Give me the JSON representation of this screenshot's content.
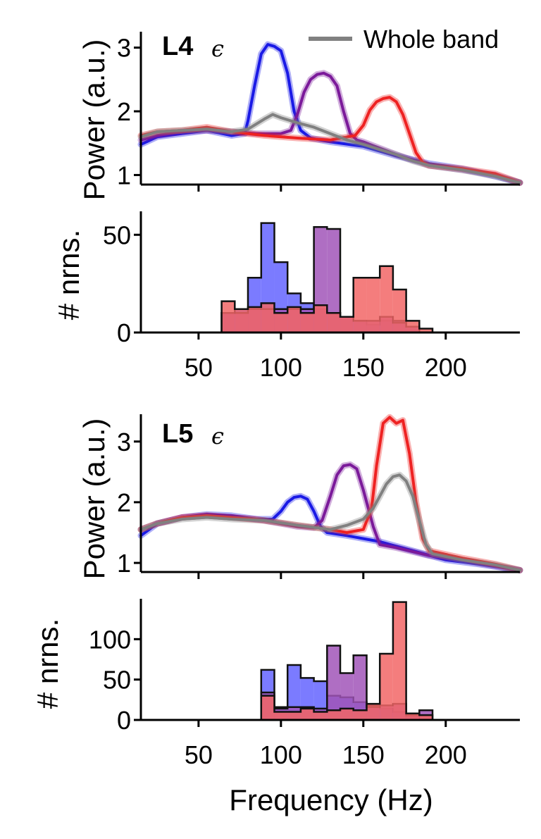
{
  "chart_data": [
    {
      "type": "line",
      "panel_tag": "L4",
      "tag_symbol": "ϵ",
      "ylabel": "Power (a.u.)",
      "xlim": [
        15,
        245
      ],
      "ylim": [
        0.85,
        3.25
      ],
      "yticks": [
        1,
        2,
        3
      ],
      "legend": {
        "label": "Whole band",
        "color": "#808080",
        "position": "top-right"
      },
      "series": [
        {
          "name": "blue",
          "color": "#1a1ae6",
          "x": [
            15,
            25,
            40,
            55,
            70,
            78,
            80,
            84,
            88,
            92,
            96,
            100,
            104,
            108,
            112,
            118,
            130,
            150,
            170,
            190,
            210,
            230,
            245
          ],
          "y": [
            1.48,
            1.6,
            1.65,
            1.7,
            1.62,
            1.65,
            1.85,
            2.4,
            2.9,
            3.05,
            3.02,
            2.95,
            2.6,
            2.0,
            1.7,
            1.58,
            1.52,
            1.45,
            1.3,
            1.18,
            1.1,
            0.98,
            0.88
          ]
        },
        {
          "name": "purple",
          "color": "#7b1a9a",
          "x": [
            15,
            25,
            40,
            55,
            70,
            85,
            100,
            106,
            110,
            114,
            118,
            122,
            126,
            130,
            134,
            138,
            142,
            146,
            150,
            170,
            190,
            210,
            230,
            245
          ],
          "y": [
            1.55,
            1.62,
            1.68,
            1.7,
            1.68,
            1.65,
            1.65,
            1.7,
            1.95,
            2.3,
            2.5,
            2.58,
            2.6,
            2.55,
            2.4,
            2.0,
            1.65,
            1.55,
            1.52,
            1.32,
            1.15,
            1.08,
            1.0,
            0.88
          ]
        },
        {
          "name": "red",
          "color": "#ee2222",
          "x": [
            15,
            25,
            40,
            55,
            70,
            90,
            110,
            130,
            145,
            150,
            154,
            158,
            162,
            166,
            170,
            174,
            178,
            182,
            186,
            190,
            210,
            230,
            245
          ],
          "y": [
            1.62,
            1.68,
            1.7,
            1.75,
            1.68,
            1.62,
            1.58,
            1.55,
            1.62,
            1.78,
            2.02,
            2.15,
            2.2,
            2.22,
            2.15,
            1.95,
            1.65,
            1.35,
            1.2,
            1.15,
            1.1,
            1.02,
            0.88
          ]
        },
        {
          "name": "Whole band",
          "color": "#808080",
          "x": [
            15,
            25,
            40,
            55,
            70,
            80,
            90,
            95,
            100,
            110,
            120,
            130,
            140,
            150,
            160,
            170,
            180,
            190,
            210,
            230,
            245
          ],
          "y": [
            1.6,
            1.68,
            1.7,
            1.72,
            1.68,
            1.72,
            1.88,
            1.95,
            1.9,
            1.82,
            1.75,
            1.65,
            1.55,
            1.48,
            1.4,
            1.32,
            1.22,
            1.15,
            1.08,
            0.98,
            0.88
          ]
        }
      ]
    },
    {
      "type": "histogram",
      "ylabel": "# nrns.",
      "xlim": [
        15,
        245
      ],
      "ylim": [
        0,
        62
      ],
      "yticks": [
        0,
        50
      ],
      "xticks": [
        50,
        100,
        150,
        200
      ],
      "bin_edges": [
        64,
        72,
        80,
        88,
        96,
        104,
        112,
        120,
        128,
        136,
        144,
        152,
        160,
        168,
        176,
        184,
        192
      ],
      "series": [
        {
          "name": "blue",
          "color": "#6464ff",
          "values": [
            10,
            12,
            28,
            56,
            36,
            20,
            15,
            12,
            10,
            8,
            6,
            4,
            6,
            6,
            3,
            0
          ]
        },
        {
          "name": "purple",
          "color": "#a155b8",
          "values": [
            10,
            10,
            12,
            12,
            12,
            12,
            12,
            54,
            53,
            8,
            6,
            6,
            8,
            5,
            3,
            0
          ]
        },
        {
          "name": "red",
          "color": "#f26666",
          "values": [
            16,
            12,
            13,
            15,
            10,
            13,
            10,
            14,
            10,
            8,
            28,
            28,
            34,
            22,
            6,
            2
          ]
        }
      ]
    },
    {
      "type": "line",
      "panel_tag": "L5",
      "tag_symbol": "ϵ",
      "ylabel": "Power (a.u.)",
      "xlim": [
        15,
        245
      ],
      "ylim": [
        0.85,
        3.45
      ],
      "yticks": [
        1,
        2,
        3
      ],
      "series": [
        {
          "name": "blue",
          "color": "#1a1ae6",
          "x": [
            15,
            25,
            40,
            55,
            70,
            85,
            95,
            100,
            104,
            108,
            112,
            116,
            120,
            124,
            128,
            140,
            160,
            180,
            200,
            220,
            245
          ],
          "y": [
            1.45,
            1.65,
            1.75,
            1.8,
            1.78,
            1.72,
            1.72,
            1.85,
            2.0,
            2.08,
            2.1,
            2.05,
            1.85,
            1.6,
            1.5,
            1.45,
            1.35,
            1.2,
            1.05,
            0.98,
            0.88
          ]
        },
        {
          "name": "purple",
          "color": "#7b1a9a",
          "x": [
            15,
            25,
            40,
            55,
            70,
            85,
            100,
            110,
            120,
            125,
            130,
            134,
            138,
            142,
            146,
            150,
            156,
            160,
            170,
            190,
            210,
            230,
            245
          ],
          "y": [
            1.55,
            1.65,
            1.75,
            1.78,
            1.75,
            1.72,
            1.65,
            1.6,
            1.58,
            1.7,
            2.1,
            2.45,
            2.6,
            2.62,
            2.55,
            2.2,
            1.6,
            1.3,
            1.25,
            1.12,
            1.05,
            0.95,
            0.88
          ]
        },
        {
          "name": "red",
          "color": "#ee2222",
          "x": [
            15,
            25,
            40,
            55,
            70,
            90,
            110,
            130,
            140,
            150,
            155,
            158,
            162,
            166,
            170,
            174,
            178,
            182,
            186,
            190,
            210,
            230,
            245
          ],
          "y": [
            1.55,
            1.65,
            1.75,
            1.78,
            1.75,
            1.7,
            1.62,
            1.55,
            1.5,
            1.55,
            1.9,
            2.6,
            3.3,
            3.4,
            3.3,
            3.35,
            2.8,
            2.0,
            1.4,
            1.2,
            1.08,
            0.98,
            0.88
          ]
        },
        {
          "name": "Whole band",
          "color": "#808080",
          "x": [
            15,
            25,
            40,
            55,
            70,
            90,
            110,
            130,
            140,
            150,
            156,
            160,
            164,
            168,
            172,
            176,
            180,
            184,
            188,
            192,
            210,
            230,
            245
          ],
          "y": [
            1.55,
            1.65,
            1.72,
            1.75,
            1.72,
            1.7,
            1.62,
            1.55,
            1.62,
            1.72,
            1.9,
            2.1,
            2.3,
            2.42,
            2.45,
            2.35,
            2.1,
            1.7,
            1.3,
            1.15,
            1.05,
            0.97,
            0.88
          ]
        }
      ]
    },
    {
      "type": "histogram",
      "ylabel": "# nrns.",
      "xlabel": "Frequency (Hz)",
      "xlim": [
        15,
        245
      ],
      "ylim": [
        0,
        150
      ],
      "yticks": [
        0,
        50,
        100
      ],
      "xticks": [
        50,
        100,
        150,
        200
      ],
      "bin_edges": [
        88,
        96,
        104,
        112,
        120,
        128,
        136,
        144,
        152,
        160,
        168,
        176,
        184,
        192
      ],
      "series": [
        {
          "name": "blue",
          "color": "#6464ff",
          "values": [
            62,
            16,
            68,
            52,
            48,
            30,
            28,
            22,
            18,
            14,
            10,
            4,
            0
          ]
        },
        {
          "name": "purple",
          "color": "#a155b8",
          "values": [
            34,
            14,
            16,
            16,
            14,
            92,
            58,
            80,
            16,
            18,
            20,
            6,
            12
          ]
        },
        {
          "name": "red",
          "color": "#f26666",
          "values": [
            30,
            10,
            10,
            14,
            10,
            12,
            14,
            12,
            20,
            82,
            146,
            8,
            6
          ]
        }
      ]
    }
  ]
}
